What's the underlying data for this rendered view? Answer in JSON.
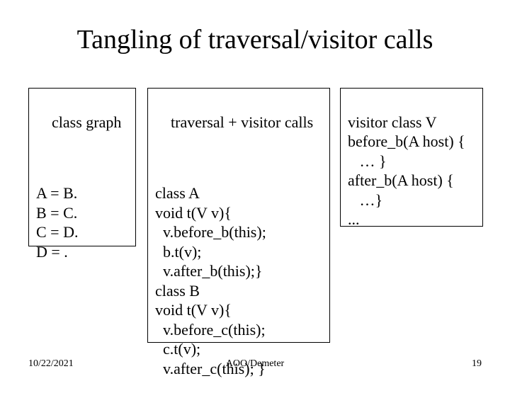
{
  "title": "Tangling of traversal/visitor calls",
  "left": {
    "header": "class graph",
    "lines": [
      "A = B.",
      "B = C.",
      "C = D.",
      "D = ."
    ]
  },
  "mid": {
    "header": "traversal + visitor calls",
    "lines": [
      "class A",
      "void t(V v){",
      "  v.before_b(this);",
      "  b.t(v);",
      "  v.after_b(this);}",
      "class B",
      "void t(V v){",
      "  v.before_c(this);",
      "  c.t(v);",
      "  v.after_c(this); }"
    ]
  },
  "right": {
    "lines": [
      "visitor class V",
      "before_b(A host) {",
      "   … }",
      "after_b(A host) {",
      "   …}",
      "..."
    ]
  },
  "footer": {
    "date": "10/22/2021",
    "center": "AOO/Demeter",
    "page": "19"
  },
  "colors": {
    "background": "#ffffff",
    "text": "#000000",
    "border": "#000000"
  }
}
